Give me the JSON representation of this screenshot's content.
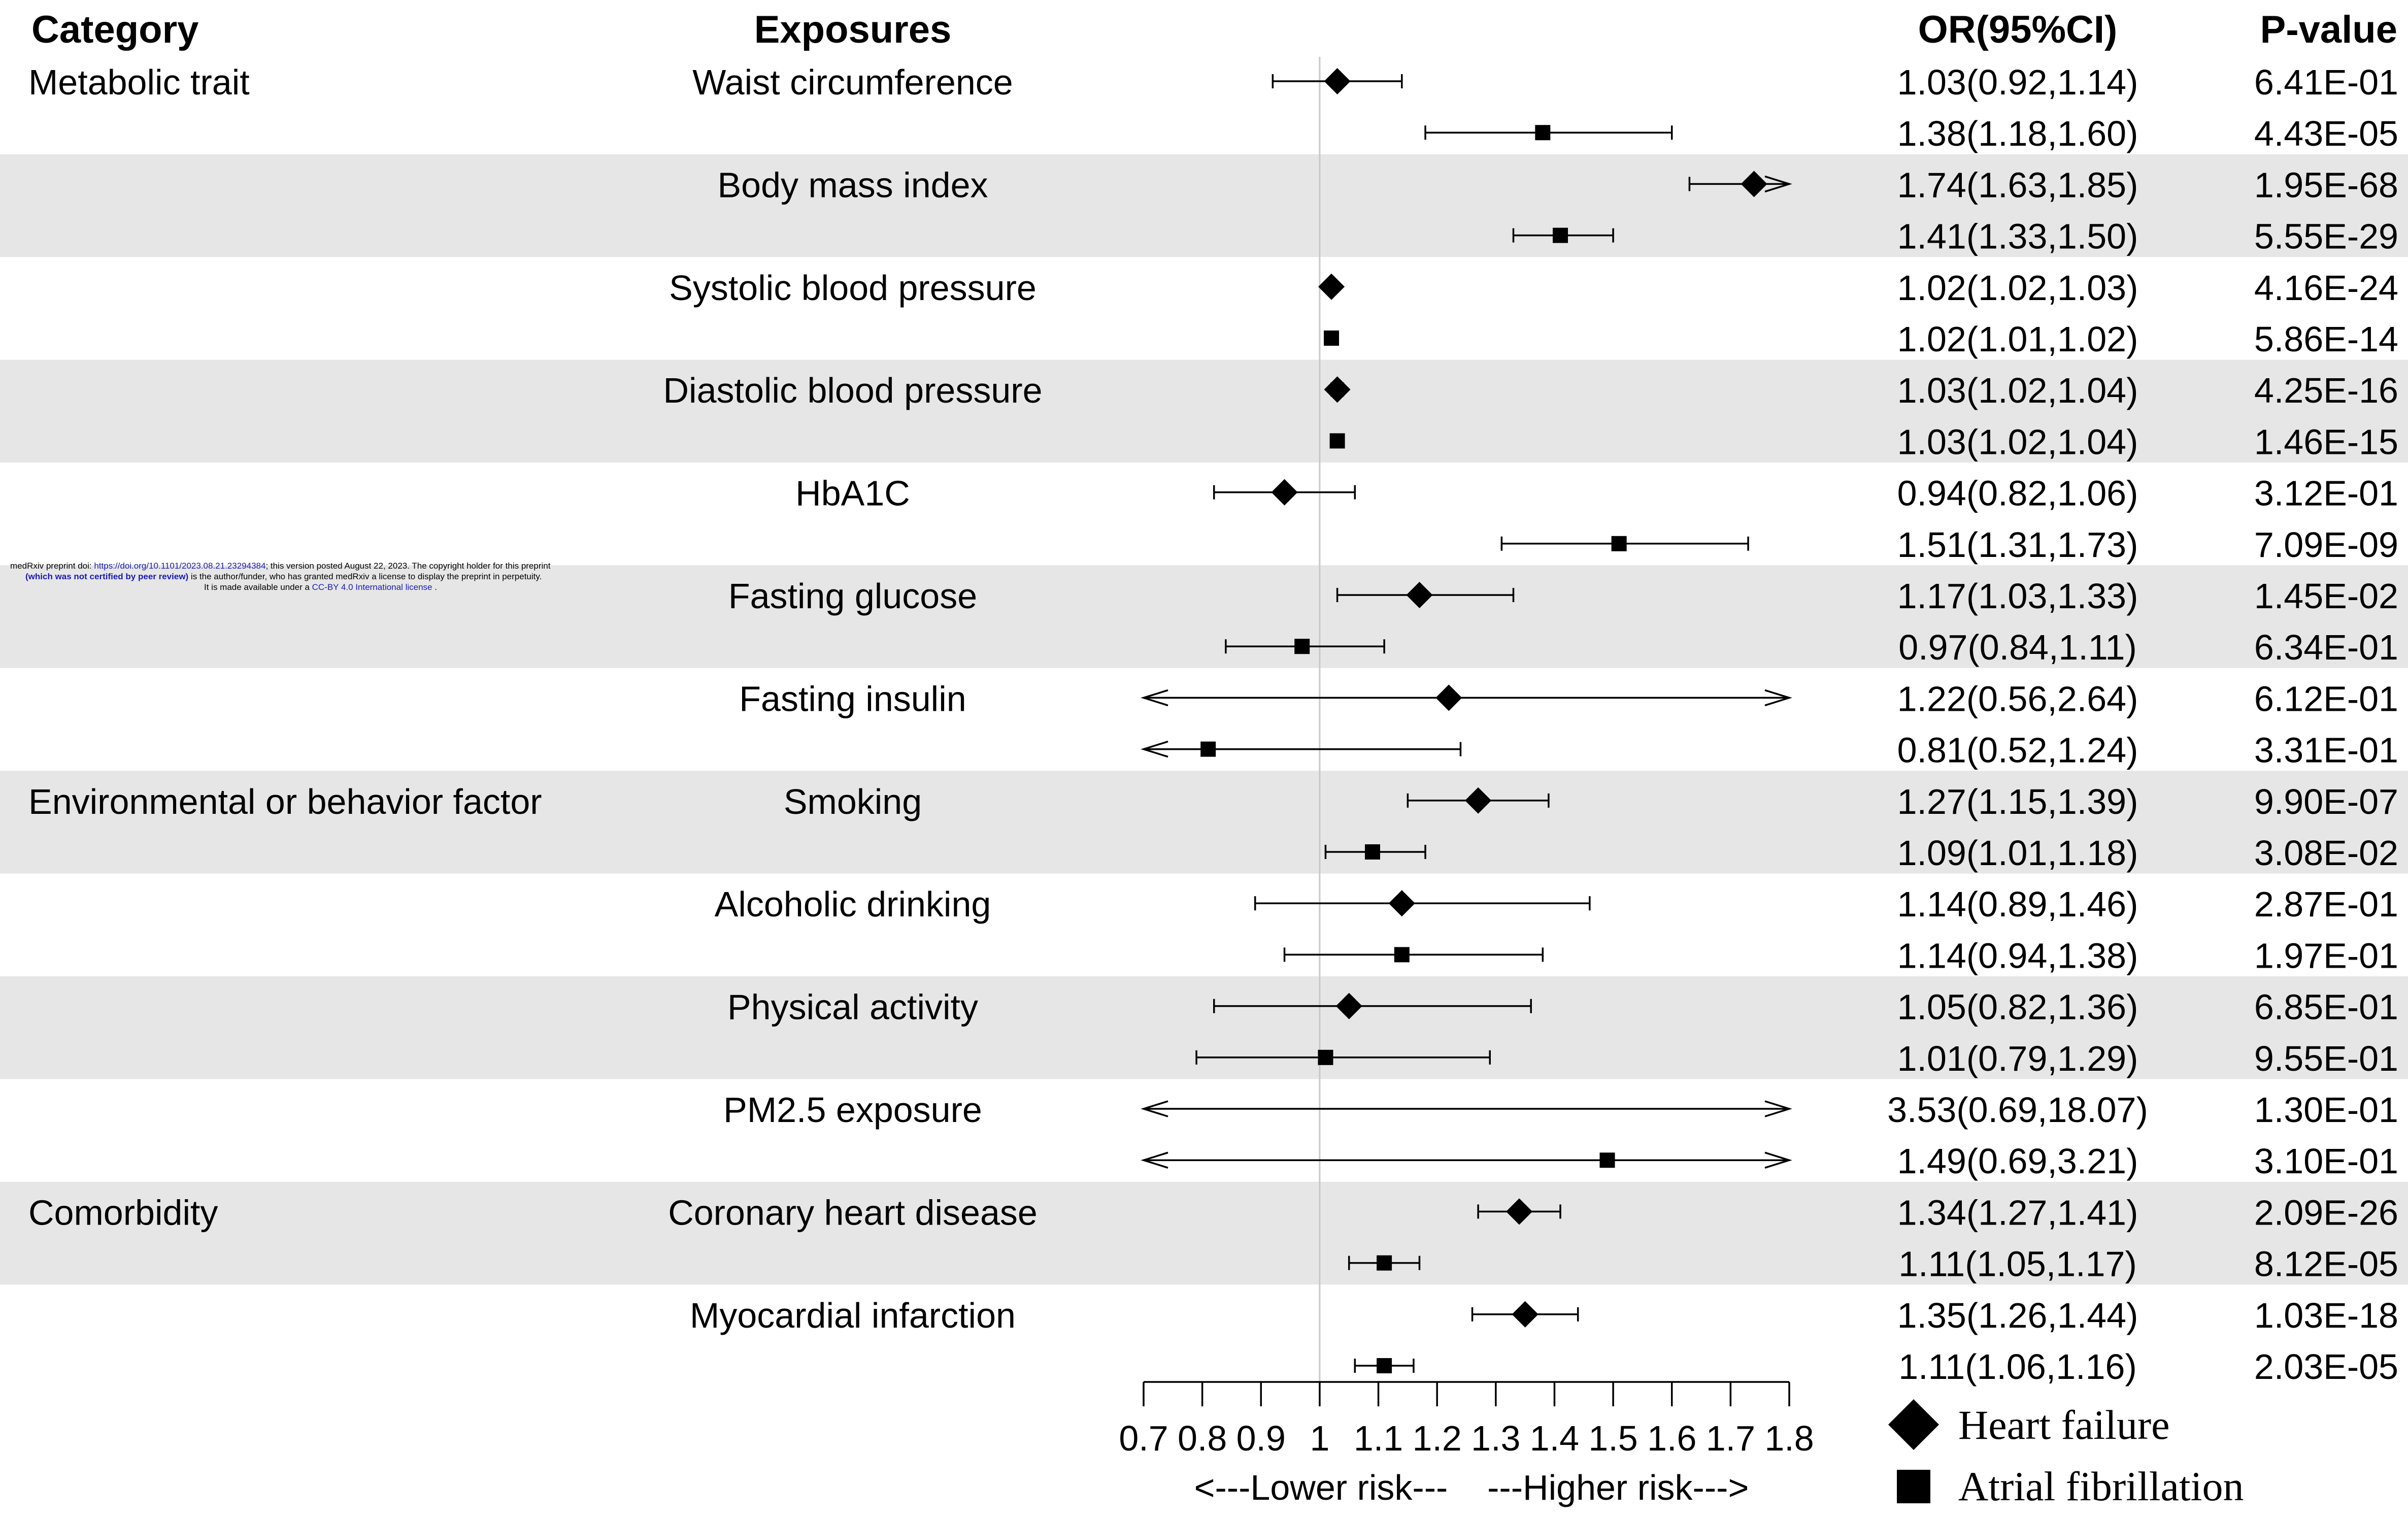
{
  "headers": {
    "category": "Category",
    "exposures": "Exposures",
    "or": "OR(95%CI)",
    "pvalue": "P-value"
  },
  "watermark": {
    "line1_a": "medRxiv preprint doi: ",
    "line1_link": "https://doi.org/10.1101/2023.08.21.23294384",
    "line1_b": "; this version posted August 22, 2023. The copyright holder for this preprint",
    "line2_a": "(which was not certified by peer review)",
    "line2_b": " is the author/funder, who has granted medRxiv a license to display the preprint in perpetuity.",
    "line3_a": "It is made available under a ",
    "line3_link": "CC-BY 4.0 International license",
    "line3_b": " ."
  },
  "chart_data": {
    "type": "forest",
    "axis": {
      "xlim": [
        0.7,
        1.8
      ],
      "ticks": [
        0.7,
        0.8,
        0.9,
        1,
        1.1,
        1.2,
        1.3,
        1.4,
        1.5,
        1.6,
        1.7,
        1.8
      ],
      "tick_labels": [
        "0.7",
        "0.8",
        "0.9",
        "1",
        "1.1",
        "1.2",
        "1.3",
        "1.4",
        "1.5",
        "1.6",
        "1.7",
        "1.8"
      ],
      "reference_line": 1,
      "xlabel": "<---Lower risk---    ---Higher risk--->"
    },
    "legend": [
      {
        "name": "Heart failure",
        "marker": "diamond"
      },
      {
        "name": "Atrial fibrillation",
        "marker": "square"
      }
    ],
    "groups": [
      {
        "category": "Metabolic trait",
        "exposure": "Waist circumference",
        "rows": [
          {
            "series": "Heart failure",
            "or": 1.03,
            "lo": 0.92,
            "hi": 1.14,
            "or_text": "1.03(0.92,1.14)",
            "p": "6.41E-01"
          },
          {
            "series": "Atrial fibrillation",
            "or": 1.38,
            "lo": 1.18,
            "hi": 1.6,
            "or_text": "1.38(1.18,1.60)",
            "p": "4.43E-05"
          }
        ]
      },
      {
        "category": "",
        "exposure": "Body mass index",
        "rows": [
          {
            "series": "Heart failure",
            "or": 1.74,
            "lo": 1.63,
            "hi": 1.85,
            "or_text": "1.74(1.63,1.85)",
            "p": "1.95E-68"
          },
          {
            "series": "Atrial fibrillation",
            "or": 1.41,
            "lo": 1.33,
            "hi": 1.5,
            "or_text": "1.41(1.33,1.50)",
            "p": "5.55E-29"
          }
        ]
      },
      {
        "category": "",
        "exposure": "Systolic blood pressure",
        "rows": [
          {
            "series": "Heart failure",
            "or": 1.02,
            "lo": 1.02,
            "hi": 1.03,
            "or_text": "1.02(1.02,1.03)",
            "p": "4.16E-24"
          },
          {
            "series": "Atrial fibrillation",
            "or": 1.02,
            "lo": 1.01,
            "hi": 1.02,
            "or_text": "1.02(1.01,1.02)",
            "p": "5.86E-14"
          }
        ]
      },
      {
        "category": "",
        "exposure": "Diastolic blood pressure",
        "rows": [
          {
            "series": "Heart failure",
            "or": 1.03,
            "lo": 1.02,
            "hi": 1.04,
            "or_text": "1.03(1.02,1.04)",
            "p": "4.25E-16"
          },
          {
            "series": "Atrial fibrillation",
            "or": 1.03,
            "lo": 1.02,
            "hi": 1.04,
            "or_text": "1.03(1.02,1.04)",
            "p": "1.46E-15"
          }
        ]
      },
      {
        "category": "",
        "exposure": "HbA1C",
        "rows": [
          {
            "series": "Heart failure",
            "or": 0.94,
            "lo": 0.82,
            "hi": 1.06,
            "or_text": "0.94(0.82,1.06)",
            "p": "3.12E-01"
          },
          {
            "series": "Atrial fibrillation",
            "or": 1.51,
            "lo": 1.31,
            "hi": 1.73,
            "or_text": "1.51(1.31,1.73)",
            "p": "7.09E-09"
          }
        ]
      },
      {
        "category": "",
        "exposure": "Fasting glucose",
        "rows": [
          {
            "series": "Heart failure",
            "or": 1.17,
            "lo": 1.03,
            "hi": 1.33,
            "or_text": "1.17(1.03,1.33)",
            "p": "1.45E-02"
          },
          {
            "series": "Atrial fibrillation",
            "or": 0.97,
            "lo": 0.84,
            "hi": 1.11,
            "or_text": "0.97(0.84,1.11)",
            "p": "6.34E-01"
          }
        ]
      },
      {
        "category": "",
        "exposure": "Fasting insulin",
        "rows": [
          {
            "series": "Heart failure",
            "or": 1.22,
            "lo": 0.56,
            "hi": 2.64,
            "or_text": "1.22(0.56,2.64)",
            "p": "6.12E-01"
          },
          {
            "series": "Atrial fibrillation",
            "or": 0.81,
            "lo": 0.52,
            "hi": 1.24,
            "or_text": "0.81(0.52,1.24)",
            "p": "3.31E-01"
          }
        ]
      },
      {
        "category": "Environmental or behavior factor",
        "exposure": "Smoking",
        "rows": [
          {
            "series": "Heart failure",
            "or": 1.27,
            "lo": 1.15,
            "hi": 1.39,
            "or_text": "1.27(1.15,1.39)",
            "p": "9.90E-07"
          },
          {
            "series": "Atrial fibrillation",
            "or": 1.09,
            "lo": 1.01,
            "hi": 1.18,
            "or_text": "1.09(1.01,1.18)",
            "p": "3.08E-02"
          }
        ]
      },
      {
        "category": "",
        "exposure": "Alcoholic drinking",
        "rows": [
          {
            "series": "Heart failure",
            "or": 1.14,
            "lo": 0.89,
            "hi": 1.46,
            "or_text": "1.14(0.89,1.46)",
            "p": "2.87E-01"
          },
          {
            "series": "Atrial fibrillation",
            "or": 1.14,
            "lo": 0.94,
            "hi": 1.38,
            "or_text": "1.14(0.94,1.38)",
            "p": "1.97E-01"
          }
        ]
      },
      {
        "category": "",
        "exposure": "Physical activity",
        "rows": [
          {
            "series": "Heart failure",
            "or": 1.05,
            "lo": 0.82,
            "hi": 1.36,
            "or_text": "1.05(0.82,1.36)",
            "p": "6.85E-01"
          },
          {
            "series": "Atrial fibrillation",
            "or": 1.01,
            "lo": 0.79,
            "hi": 1.29,
            "or_text": "1.01(0.79,1.29)",
            "p": "9.55E-01"
          }
        ]
      },
      {
        "category": "",
        "exposure": "PM2.5 exposure",
        "rows": [
          {
            "series": "Heart failure",
            "or": 3.53,
            "lo": 0.69,
            "hi": 18.07,
            "or_text": "3.53(0.69,18.07)",
            "p": "1.30E-01"
          },
          {
            "series": "Atrial fibrillation",
            "or": 1.49,
            "lo": 0.69,
            "hi": 3.21,
            "or_text": "1.49(0.69,3.21)",
            "p": "3.10E-01"
          }
        ]
      },
      {
        "category": "Comorbidity",
        "exposure": "Coronary heart disease",
        "rows": [
          {
            "series": "Heart failure",
            "or": 1.34,
            "lo": 1.27,
            "hi": 1.41,
            "or_text": "1.34(1.27,1.41)",
            "p": "2.09E-26"
          },
          {
            "series": "Atrial fibrillation",
            "or": 1.11,
            "lo": 1.05,
            "hi": 1.17,
            "or_text": "1.11(1.05,1.17)",
            "p": "8.12E-05"
          }
        ]
      },
      {
        "category": "",
        "exposure": "Myocardial infarction",
        "rows": [
          {
            "series": "Heart failure",
            "or": 1.35,
            "lo": 1.26,
            "hi": 1.44,
            "or_text": "1.35(1.26,1.44)",
            "p": "1.03E-18"
          },
          {
            "series": "Atrial fibrillation",
            "or": 1.11,
            "lo": 1.06,
            "hi": 1.16,
            "or_text": "1.11(1.06,1.16)",
            "p": "2.03E-05"
          }
        ]
      }
    ]
  }
}
